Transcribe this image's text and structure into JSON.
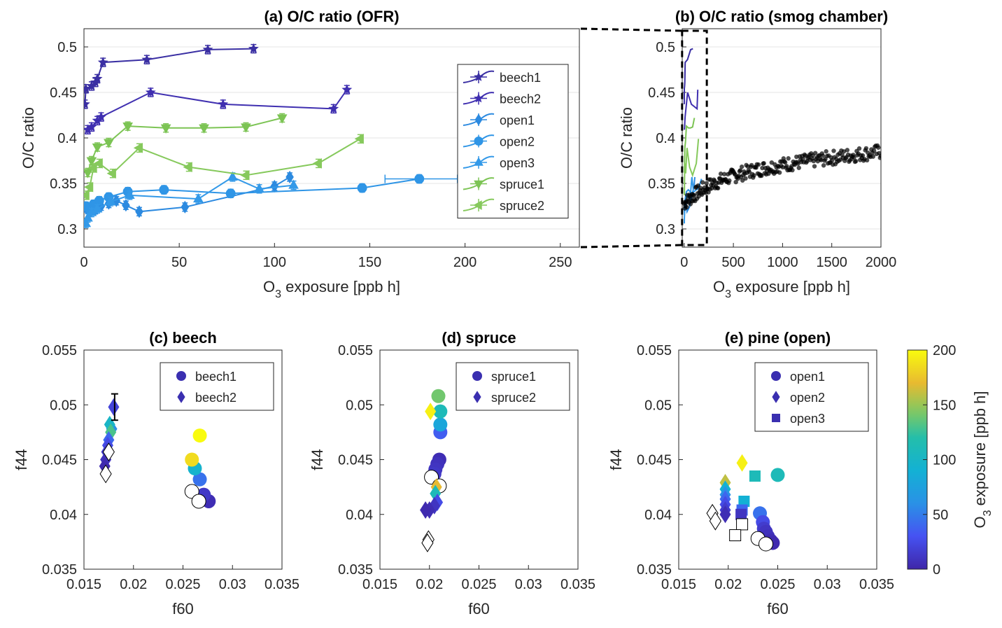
{
  "colors": {
    "beech1": "#3a2fa3",
    "beech2": "#3f2fb0",
    "open1": "#2c8ae0",
    "open2": "#2f95e6",
    "open3": "#3399e8",
    "spruce1": "#7cc454",
    "spruce2": "#86c95c",
    "smog": "#000000"
  },
  "chart_data": [
    {
      "id": "a",
      "type": "line",
      "title": "(a) O/C ratio (OFR)",
      "xlabel_main": "O",
      "xlabel_sub": "3",
      "xlabel_rest": " exposure [ppb h]",
      "ylabel": "O/C ratio",
      "xlim": [
        0,
        260
      ],
      "ylim": [
        0.28,
        0.52
      ],
      "xticks": [
        0,
        50,
        100,
        150,
        200,
        250
      ],
      "yticks": [
        0.3,
        0.35,
        0.4,
        0.45,
        0.5
      ],
      "xtick_labels": [
        "0",
        "50",
        "100",
        "150",
        "200",
        "250"
      ],
      "ytick_labels": [
        "0.3",
        "0.35",
        "0.4",
        "0.45",
        "0.5"
      ],
      "legend": [
        "beech1",
        "beech2",
        "open1",
        "open2",
        "open3",
        "spruce1",
        "spruce2"
      ],
      "series": [
        {
          "name": "beech1",
          "color_key": "beech1",
          "marker": "star",
          "x": [
            0.5,
            1,
            4,
            6,
            7,
            10,
            33,
            65,
            89
          ],
          "y": [
            0.437,
            0.454,
            0.457,
            0.461,
            0.465,
            0.483,
            0.486,
            0.497,
            0.498
          ]
        },
        {
          "name": "beech2",
          "color_key": "beech2",
          "marker": "star",
          "x": [
            2,
            4,
            7,
            9,
            35,
            73,
            131,
            138
          ],
          "y": [
            0.409,
            0.412,
            0.419,
            0.423,
            0.45,
            0.437,
            0.432,
            0.453
          ]
        },
        {
          "name": "open1",
          "color_key": "open1",
          "marker": "diamond",
          "x": [
            1,
            3,
            6,
            9,
            13,
            17,
            22,
            29,
            53,
            100,
            108
          ],
          "y": [
            0.323,
            0.318,
            0.321,
            0.325,
            0.328,
            0.331,
            0.326,
            0.319,
            0.324,
            0.347,
            0.357
          ]
        },
        {
          "name": "open2",
          "color_key": "open2",
          "marker": "circle",
          "x": [
            1,
            3,
            5,
            8,
            13,
            23,
            42,
            77,
            146,
            176
          ],
          "y": [
            0.325,
            0.322,
            0.327,
            0.331,
            0.335,
            0.341,
            0.343,
            0.339,
            0.345,
            0.355
          ]
        },
        {
          "name": "open3",
          "color_key": "open3",
          "marker": "triangle-up",
          "x": [
            1,
            2,
            4,
            7,
            14,
            24,
            60,
            78,
            92,
            110
          ],
          "y": [
            0.306,
            0.312,
            0.318,
            0.322,
            0.33,
            0.337,
            0.333,
            0.357,
            0.344,
            0.348
          ]
        },
        {
          "name": "spruce1",
          "color_key": "spruce1",
          "marker": "triangle-down",
          "x": [
            2,
            4,
            7,
            13,
            23,
            43,
            63,
            85,
            104
          ],
          "y": [
            0.362,
            0.375,
            0.39,
            0.395,
            0.413,
            0.411,
            0.411,
            0.412,
            0.422
          ]
        },
        {
          "name": "spruce2",
          "color_key": "spruce2",
          "marker": "triangle-left",
          "x": [
            1,
            3,
            5,
            8,
            15,
            29,
            55,
            85,
            123,
            145
          ],
          "y": [
            0.337,
            0.346,
            0.367,
            0.372,
            0.361,
            0.389,
            0.368,
            0.359,
            0.372,
            0.399
          ]
        }
      ]
    },
    {
      "id": "b",
      "type": "scatter",
      "title": "(b) O/C ratio (smog chamber)",
      "xlabel_main": "O",
      "xlabel_sub": "3",
      "xlabel_rest": " exposure [ppb h]",
      "ylabel": "O/C ratio",
      "xlim": [
        -20,
        2000
      ],
      "ylim": [
        0.28,
        0.52
      ],
      "xticks": [
        0,
        500,
        1000,
        1500,
        2000
      ],
      "yticks": [
        0.3,
        0.35,
        0.4,
        0.45,
        0.5
      ],
      "xtick_labels": [
        "0",
        "500",
        "1000",
        "1500",
        "2000"
      ],
      "ytick_labels": [
        "0.3",
        "0.35",
        "0.4",
        "0.45",
        "0.5"
      ],
      "smog_series": {
        "name": "smog chamber",
        "color_key": "smog",
        "x_start": 0,
        "x_end": 2000,
        "y_start": 0.328,
        "y_end": 0.385,
        "count": 260
      },
      "zoom_box": {
        "x": [
          0,
          230
        ],
        "y": [
          0.28,
          0.52
        ]
      }
    },
    {
      "id": "c",
      "type": "scatter",
      "title": "(c) beech",
      "xlabel": "f60",
      "ylabel": "f44",
      "xlim": [
        0.015,
        0.035
      ],
      "ylim": [
        0.035,
        0.055
      ],
      "xticks": [
        0.015,
        0.02,
        0.025,
        0.03,
        0.035
      ],
      "yticks": [
        0.035,
        0.04,
        0.045,
        0.05,
        0.055
      ],
      "xtick_labels": [
        "0.015",
        "0.02",
        "0.025",
        "0.03",
        "0.035"
      ],
      "ytick_labels": [
        "0.035",
        "0.04",
        "0.045",
        "0.05",
        "0.055"
      ],
      "legend": [
        "beech1",
        "beech2"
      ],
      "legend_markers": [
        "circle",
        "diamond"
      ],
      "points": [
        {
          "m": "circle",
          "x": 0.0276,
          "y": 0.0412,
          "o3": 5
        },
        {
          "m": "circle",
          "x": 0.0271,
          "y": 0.0418,
          "o3": 12
        },
        {
          "m": "circle",
          "x": 0.0267,
          "y": 0.0432,
          "o3": 45
        },
        {
          "m": "circle",
          "x": 0.0262,
          "y": 0.0442,
          "o3": 95
        },
        {
          "m": "circle",
          "x": 0.0259,
          "y": 0.045,
          "o3": 185
        },
        {
          "m": "circle",
          "x": 0.0267,
          "y": 0.0472,
          "o3": 200
        },
        {
          "m": "circle",
          "x": 0.0259,
          "y": 0.0421,
          "o3": "none"
        },
        {
          "m": "circle",
          "x": 0.0266,
          "y": 0.0412,
          "o3": "none"
        },
        {
          "m": "diamond",
          "x": 0.018,
          "y": 0.0498,
          "o3": 20
        },
        {
          "m": "diamond",
          "x": 0.0178,
          "y": 0.0478,
          "o3": 60
        },
        {
          "m": "diamond",
          "x": 0.0176,
          "y": 0.0482,
          "o3": 100
        },
        {
          "m": "diamond",
          "x": 0.0177,
          "y": 0.0475,
          "o3": 130
        },
        {
          "m": "diamond",
          "x": 0.0175,
          "y": 0.0468,
          "o3": 40
        },
        {
          "m": "diamond",
          "x": 0.0174,
          "y": 0.0463,
          "o3": 25
        },
        {
          "m": "diamond",
          "x": 0.0173,
          "y": 0.0457,
          "o3": 15
        },
        {
          "m": "diamond",
          "x": 0.0172,
          "y": 0.045,
          "o3": 8
        },
        {
          "m": "diamond",
          "x": 0.0171,
          "y": 0.0444,
          "o3": 3
        },
        {
          "m": "diamond",
          "x": 0.0175,
          "y": 0.0457,
          "o3": "none"
        },
        {
          "m": "diamond",
          "x": 0.0172,
          "y": 0.0437,
          "o3": "none"
        }
      ],
      "errorbar": {
        "x": 0.0181,
        "y": 0.0498,
        "ylo": 0.0486,
        "yhi": 0.051
      }
    },
    {
      "id": "d",
      "type": "scatter",
      "title": "(d) spruce",
      "xlabel": "f60",
      "ylabel": "f44",
      "xlim": [
        0.015,
        0.035
      ],
      "ylim": [
        0.035,
        0.055
      ],
      "xticks": [
        0.015,
        0.02,
        0.025,
        0.03,
        0.035
      ],
      "yticks": [
        0.035,
        0.04,
        0.045,
        0.05,
        0.055
      ],
      "xtick_labels": [
        "0.015",
        "0.02",
        "0.025",
        "0.03",
        "0.035"
      ],
      "ytick_labels": [
        "0.035",
        "0.04",
        "0.045",
        "0.05",
        "0.055"
      ],
      "legend": [
        "spruce1",
        "spruce2"
      ],
      "legend_markers": [
        "circle",
        "diamond"
      ],
      "points": [
        {
          "m": "circle",
          "x": 0.021,
          "y": 0.045,
          "o3": 5
        },
        {
          "m": "circle",
          "x": 0.0208,
          "y": 0.0446,
          "o3": 8
        },
        {
          "m": "circle",
          "x": 0.0206,
          "y": 0.0441,
          "o3": 10
        },
        {
          "m": "circle",
          "x": 0.0205,
          "y": 0.0437,
          "o3": 12
        },
        {
          "m": "circle",
          "x": 0.0211,
          "y": 0.0475,
          "o3": 35
        },
        {
          "m": "circle",
          "x": 0.0211,
          "y": 0.0482,
          "o3": 80
        },
        {
          "m": "circle",
          "x": 0.0211,
          "y": 0.0494,
          "o3": 110
        },
        {
          "m": "circle",
          "x": 0.0209,
          "y": 0.0508,
          "o3": 140
        },
        {
          "m": "circle",
          "x": 0.0202,
          "y": 0.0434,
          "o3": "none"
        },
        {
          "m": "circle",
          "x": 0.021,
          "y": 0.0426,
          "o3": "none"
        },
        {
          "m": "diamond",
          "x": 0.0201,
          "y": 0.0494,
          "o3": 195
        },
        {
          "m": "diamond",
          "x": 0.0207,
          "y": 0.0425,
          "o3": 170
        },
        {
          "m": "diamond",
          "x": 0.0206,
          "y": 0.0419,
          "o3": 110
        },
        {
          "m": "diamond",
          "x": 0.0208,
          "y": 0.0411,
          "o3": 25
        },
        {
          "m": "diamond",
          "x": 0.0205,
          "y": 0.0408,
          "o3": 10
        },
        {
          "m": "diamond",
          "x": 0.02,
          "y": 0.0404,
          "o3": 5
        },
        {
          "m": "diamond",
          "x": 0.0196,
          "y": 0.0404,
          "o3": 3
        },
        {
          "m": "diamond",
          "x": 0.0199,
          "y": 0.0377,
          "o3": "none"
        },
        {
          "m": "diamond",
          "x": 0.0198,
          "y": 0.0374,
          "o3": "none"
        }
      ]
    },
    {
      "id": "e",
      "type": "scatter",
      "title": "(e) pine (open)",
      "xlabel": "f60",
      "ylabel": "f44",
      "xlim": [
        0.015,
        0.035
      ],
      "ylim": [
        0.035,
        0.055
      ],
      "xticks": [
        0.015,
        0.02,
        0.025,
        0.03,
        0.035
      ],
      "yticks": [
        0.035,
        0.04,
        0.045,
        0.05,
        0.055
      ],
      "xtick_labels": [
        "0.015",
        "0.02",
        "0.025",
        "0.03",
        "0.035"
      ],
      "ytick_labels": [
        "0.035",
        "0.04",
        "0.045",
        "0.05",
        "0.055"
      ],
      "legend": [
        "open1",
        "open2",
        "open3"
      ],
      "legend_markers": [
        "circle",
        "diamond",
        "square"
      ],
      "colorbar": {
        "label_main": "O",
        "label_sub": "3",
        "label_rest": " exposure [ppb h]",
        "min": 0,
        "max": 200,
        "ticks": [
          0,
          50,
          100,
          150,
          200
        ],
        "tick_labels": [
          "0",
          "50",
          "100",
          "150",
          "200"
        ]
      },
      "points": [
        {
          "m": "circle",
          "x": 0.025,
          "y": 0.0436,
          "o3": 110
        },
        {
          "m": "circle",
          "x": 0.0232,
          "y": 0.0401,
          "o3": 45
        },
        {
          "m": "circle",
          "x": 0.0235,
          "y": 0.0393,
          "o3": 25
        },
        {
          "m": "circle",
          "x": 0.0236,
          "y": 0.0387,
          "o3": 15
        },
        {
          "m": "circle",
          "x": 0.0238,
          "y": 0.0384,
          "o3": 10
        },
        {
          "m": "circle",
          "x": 0.024,
          "y": 0.038,
          "o3": 8
        },
        {
          "m": "circle",
          "x": 0.0243,
          "y": 0.0376,
          "o3": 5
        },
        {
          "m": "circle",
          "x": 0.0245,
          "y": 0.0374,
          "o3": 3
        },
        {
          "m": "circle",
          "x": 0.023,
          "y": 0.0378,
          "o3": "none"
        },
        {
          "m": "circle",
          "x": 0.0238,
          "y": 0.0373,
          "o3": "none"
        },
        {
          "m": "diamond",
          "x": 0.0214,
          "y": 0.0447,
          "o3": 195
        },
        {
          "m": "diamond",
          "x": 0.0197,
          "y": 0.0429,
          "o3": 160
        },
        {
          "m": "diamond",
          "x": 0.0197,
          "y": 0.0423,
          "o3": 90
        },
        {
          "m": "diamond",
          "x": 0.0197,
          "y": 0.0418,
          "o3": 60
        },
        {
          "m": "diamond",
          "x": 0.0197,
          "y": 0.0414,
          "o3": 40
        },
        {
          "m": "diamond",
          "x": 0.0197,
          "y": 0.0409,
          "o3": 25
        },
        {
          "m": "diamond",
          "x": 0.0197,
          "y": 0.0404,
          "o3": 15
        },
        {
          "m": "diamond",
          "x": 0.0197,
          "y": 0.04,
          "o3": 5
        },
        {
          "m": "diamond",
          "x": 0.0184,
          "y": 0.0401,
          "o3": "none"
        },
        {
          "m": "diamond",
          "x": 0.0187,
          "y": 0.0394,
          "o3": "none"
        },
        {
          "m": "square",
          "x": 0.0227,
          "y": 0.0435,
          "o3": 110
        },
        {
          "m": "square",
          "x": 0.0216,
          "y": 0.0412,
          "o3": 90
        },
        {
          "m": "square",
          "x": 0.0214,
          "y": 0.0404,
          "o3": 40
        },
        {
          "m": "square",
          "x": 0.0213,
          "y": 0.04,
          "o3": 10
        },
        {
          "m": "square",
          "x": 0.0214,
          "y": 0.0391,
          "o3": "none"
        },
        {
          "m": "square",
          "x": 0.0207,
          "y": 0.0381,
          "o3": "none"
        }
      ]
    }
  ]
}
